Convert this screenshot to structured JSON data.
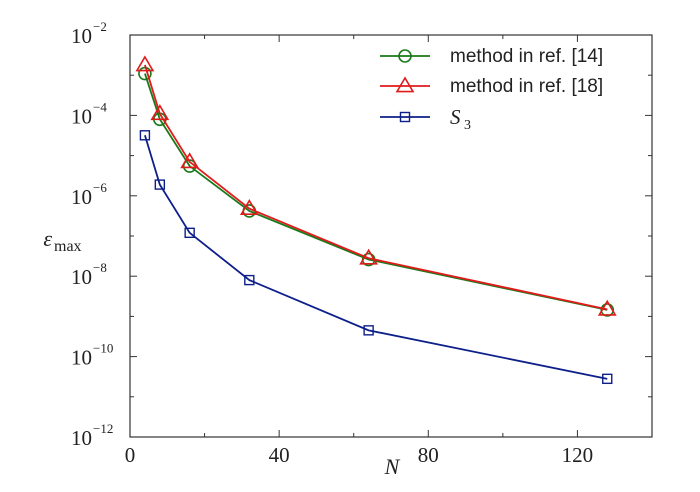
{
  "chart_data": {
    "type": "line",
    "xlabel": "N",
    "ylabel": "ε",
    "ylabel_sub": "max",
    "xlim": [
      0,
      140
    ],
    "ylim": [
      1e-12,
      0.01
    ],
    "yscale": "log",
    "grid": false,
    "legend_position": "top-right",
    "xticks": [
      0,
      40,
      80,
      120
    ],
    "yticks": [
      {
        "value": 0.01,
        "base": "10",
        "exp": "−2"
      },
      {
        "value": 0.0001,
        "base": "10",
        "exp": "−4"
      },
      {
        "value": 1e-06,
        "base": "10",
        "exp": "−6"
      },
      {
        "value": 1e-08,
        "base": "10",
        "exp": "−8"
      },
      {
        "value": 1e-10,
        "base": "10",
        "exp": "−10"
      },
      {
        "value": 1e-12,
        "base": "10",
        "exp": "−12"
      }
    ],
    "series": [
      {
        "name": "method in ref. [14]",
        "color": "#1a7a1a",
        "marker": "circle",
        "x": [
          4,
          8,
          16,
          32,
          64,
          128
        ],
        "y": [
          0.0011,
          8e-05,
          5.5e-06,
          4.2e-07,
          2.6e-08,
          1.45e-09
        ]
      },
      {
        "name": "method in ref. [18]",
        "color": "#e01b1b",
        "marker": "triangle",
        "x": [
          4,
          8,
          16,
          32,
          64,
          128
        ],
        "y": [
          0.0018,
          0.00011,
          7e-06,
          4.8e-07,
          2.8e-08,
          1.5e-09
        ]
      },
      {
        "name": "S",
        "name_sub": "3",
        "color": "#0d1f8a",
        "marker": "square",
        "x": [
          4,
          8,
          16,
          32,
          64,
          128
        ],
        "y": [
          3.2e-05,
          1.9e-06,
          1.2e-07,
          8e-09,
          4.5e-10,
          2.8e-11
        ]
      }
    ]
  }
}
